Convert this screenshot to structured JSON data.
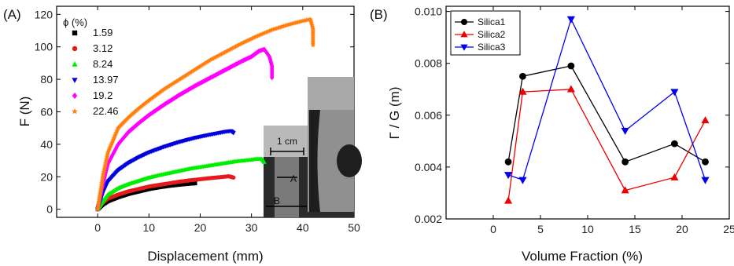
{
  "panel_labels": [
    "(A)",
    "(B)"
  ],
  "inset": {
    "scale_label": "1 cm",
    "marker_a": "A",
    "marker_b": "B"
  },
  "chart_data": [
    {
      "type": "scatter",
      "xlabel": "Displacement (mm)",
      "ylabel": "F (N)",
      "xlim": [
        -8,
        50
      ],
      "ylim": [
        -5,
        125
      ],
      "xticks": [
        0,
        10,
        20,
        30,
        40,
        50
      ],
      "yticks": [
        0,
        20,
        40,
        60,
        80,
        100,
        120
      ],
      "legend_title": "ϕ (%)",
      "legend_position": "top-left",
      "series": [
        {
          "name": "1.59",
          "color": "#000000",
          "marker": "square",
          "x": [
            0,
            1,
            2,
            4,
            6,
            8,
            10,
            12,
            14,
            16,
            18,
            19
          ],
          "y": [
            0,
            3,
            5,
            7.5,
            9.5,
            11,
            12.5,
            13.6,
            14.5,
            15.2,
            15.8,
            16
          ]
        },
        {
          "name": "3.12",
          "color": "#e41a1c",
          "marker": "circle",
          "x": [
            0,
            1,
            2,
            4,
            6,
            8,
            10,
            12,
            14,
            16,
            18,
            20,
            22,
            24,
            25.5,
            26,
            26.5
          ],
          "y": [
            0,
            4,
            6.5,
            9,
            11,
            12.5,
            14,
            15,
            16,
            17,
            17.8,
            18.5,
            19.2,
            19.8,
            20.3,
            20,
            19.5
          ]
        },
        {
          "name": "8.24",
          "color": "#00ee00",
          "marker": "triangle-up",
          "x": [
            0,
            1,
            2,
            4,
            6,
            8,
            10,
            12,
            15,
            18,
            21,
            24,
            27,
            30,
            31,
            32,
            32.5
          ],
          "y": [
            0,
            5,
            9,
            13,
            15.5,
            17.5,
            19.5,
            21,
            23,
            25,
            26.5,
            28,
            29.5,
            30.5,
            31,
            31,
            29
          ]
        },
        {
          "name": "13.97",
          "color": "#0000dd",
          "marker": "triangle-down",
          "x": [
            0,
            1,
            2,
            4,
            6,
            8,
            10,
            13,
            16,
            19,
            22,
            25,
            26,
            26.5
          ],
          "y": [
            0,
            10,
            17,
            24,
            28.5,
            32,
            35,
            38.5,
            41.5,
            44,
            46,
            47.8,
            48.2,
            47
          ]
        },
        {
          "name": "19.2",
          "color": "#ff00ff",
          "marker": "diamond",
          "x": [
            0,
            1,
            2,
            4,
            6,
            8,
            10,
            13,
            16,
            19,
            22,
            25,
            28,
            30,
            31.5,
            32.5,
            33.5,
            34,
            34
          ],
          "y": [
            0,
            15,
            28,
            40,
            47.5,
            53,
            58,
            64.5,
            70.5,
            76,
            81,
            86,
            91,
            94,
            97.5,
            98.5,
            94,
            88,
            81
          ]
        },
        {
          "name": "22.46",
          "color": "#ff7f0e",
          "marker": "star",
          "x": [
            0,
            1,
            2,
            4,
            6,
            8,
            10,
            13,
            16,
            19,
            22,
            25,
            28,
            31,
            34,
            37,
            40,
            41.5,
            42,
            42
          ],
          "y": [
            0,
            20,
            35,
            50,
            56.5,
            62,
            67,
            74,
            80,
            86,
            92,
            97,
            102,
            106.5,
            110.5,
            113.5,
            116,
            117,
            111,
            101
          ]
        }
      ]
    },
    {
      "type": "line",
      "xlabel": "Volume Fraction (%)",
      "ylabel": "Γ / G (m)",
      "xlim": [
        -5,
        25
      ],
      "ylim": [
        0.002,
        0.0102
      ],
      "xticks": [
        0,
        5,
        10,
        15,
        20,
        25
      ],
      "ytick_labels": [
        "0.002",
        "0.004",
        "0.006",
        "0.008",
        "0.010"
      ],
      "yticks": [
        0.002,
        0.004,
        0.006,
        0.008,
        0.01
      ],
      "legend_position": "top-left",
      "x": [
        1.59,
        3.12,
        8.24,
        13.97,
        19.2,
        22.46
      ],
      "series": [
        {
          "name": "Silica1",
          "color": "#000000",
          "marker": "circle",
          "values": [
            0.0042,
            0.0075,
            0.0079,
            0.0042,
            0.0049,
            0.0042
          ]
        },
        {
          "name": "Silica2",
          "color": "#ee0000",
          "marker": "triangle-up",
          "values": [
            0.0027,
            0.0069,
            0.007,
            0.0031,
            0.0036,
            0.0058
          ]
        },
        {
          "name": "Silica3",
          "color": "#0000ee",
          "marker": "triangle-down",
          "values": [
            0.0037,
            0.0035,
            0.0097,
            0.0054,
            0.0069,
            0.0035
          ]
        }
      ]
    }
  ]
}
